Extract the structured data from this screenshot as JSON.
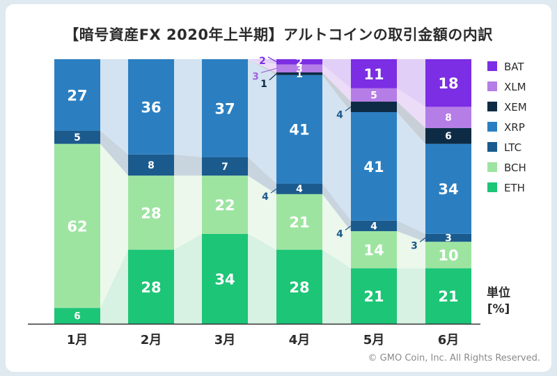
{
  "title": "【暗号資産FX 2020年上半期】アルトコインの取引金額の内訳",
  "copyright": "© GMO Coin, Inc. All Rights Reserved.",
  "unit_label_1": "単位",
  "unit_label_2": "[%]",
  "chart_data": {
    "type": "bar",
    "stacked": true,
    "title": "【暗号資産FX 2020年上半期】アルトコインの取引金額の内訳",
    "ylabel": "単位 [%]",
    "ylim": [
      0,
      100
    ],
    "categories": [
      "1月",
      "2月",
      "3月",
      "4月",
      "5月",
      "6月"
    ],
    "series": [
      {
        "name": "ETH",
        "color": "#1dc577",
        "band": "#d7f1e3",
        "values": [
          6,
          28,
          34,
          28,
          21,
          21
        ],
        "labels": [
          "6",
          "28",
          "34",
          "28",
          "21",
          "21"
        ]
      },
      {
        "name": "BCH",
        "color": "#9ee4a1",
        "band": "#ecf8ec",
        "values": [
          62,
          28,
          22,
          21,
          14,
          10
        ],
        "labels": [
          "62",
          "28",
          "22",
          "21",
          "14",
          "10"
        ]
      },
      {
        "name": "LTC",
        "color": "#1b5a8c",
        "band": "#c8d4de",
        "values": [
          5,
          8,
          7,
          4,
          4,
          3
        ],
        "labels": [
          "5",
          "8",
          "7",
          "4",
          "4",
          "3"
        ]
      },
      {
        "name": "XRP",
        "color": "#2b7fc1",
        "band": "#d3e3f1",
        "values": [
          27,
          36,
          37,
          41,
          41,
          34
        ],
        "labels": [
          "27",
          "36",
          "37",
          "41",
          "41",
          "34"
        ]
      },
      {
        "name": "XEM",
        "color": "#0d2b45",
        "band": "#c9cfd6",
        "values": [
          0,
          0,
          0,
          1,
          4,
          6
        ],
        "labels": [
          "",
          "",
          "",
          "1",
          "",
          "6"
        ]
      },
      {
        "name": "XLM",
        "color": "#b57de6",
        "band": "#ecdcf8",
        "values": [
          0,
          0,
          0,
          3,
          5,
          8
        ],
        "labels": [
          "",
          "",
          "",
          "3",
          "5",
          "8"
        ]
      },
      {
        "name": "BAT",
        "color": "#7b2ee3",
        "band": "#e1cff7",
        "values": [
          0,
          0,
          0,
          2,
          11,
          18
        ],
        "labels": [
          "",
          "",
          "",
          "2",
          "11",
          "18"
        ]
      }
    ],
    "legend": [
      "BAT",
      "XLM",
      "XEM",
      "XRP",
      "LTC",
      "BCH",
      "ETH"
    ],
    "legend_position": "right"
  }
}
